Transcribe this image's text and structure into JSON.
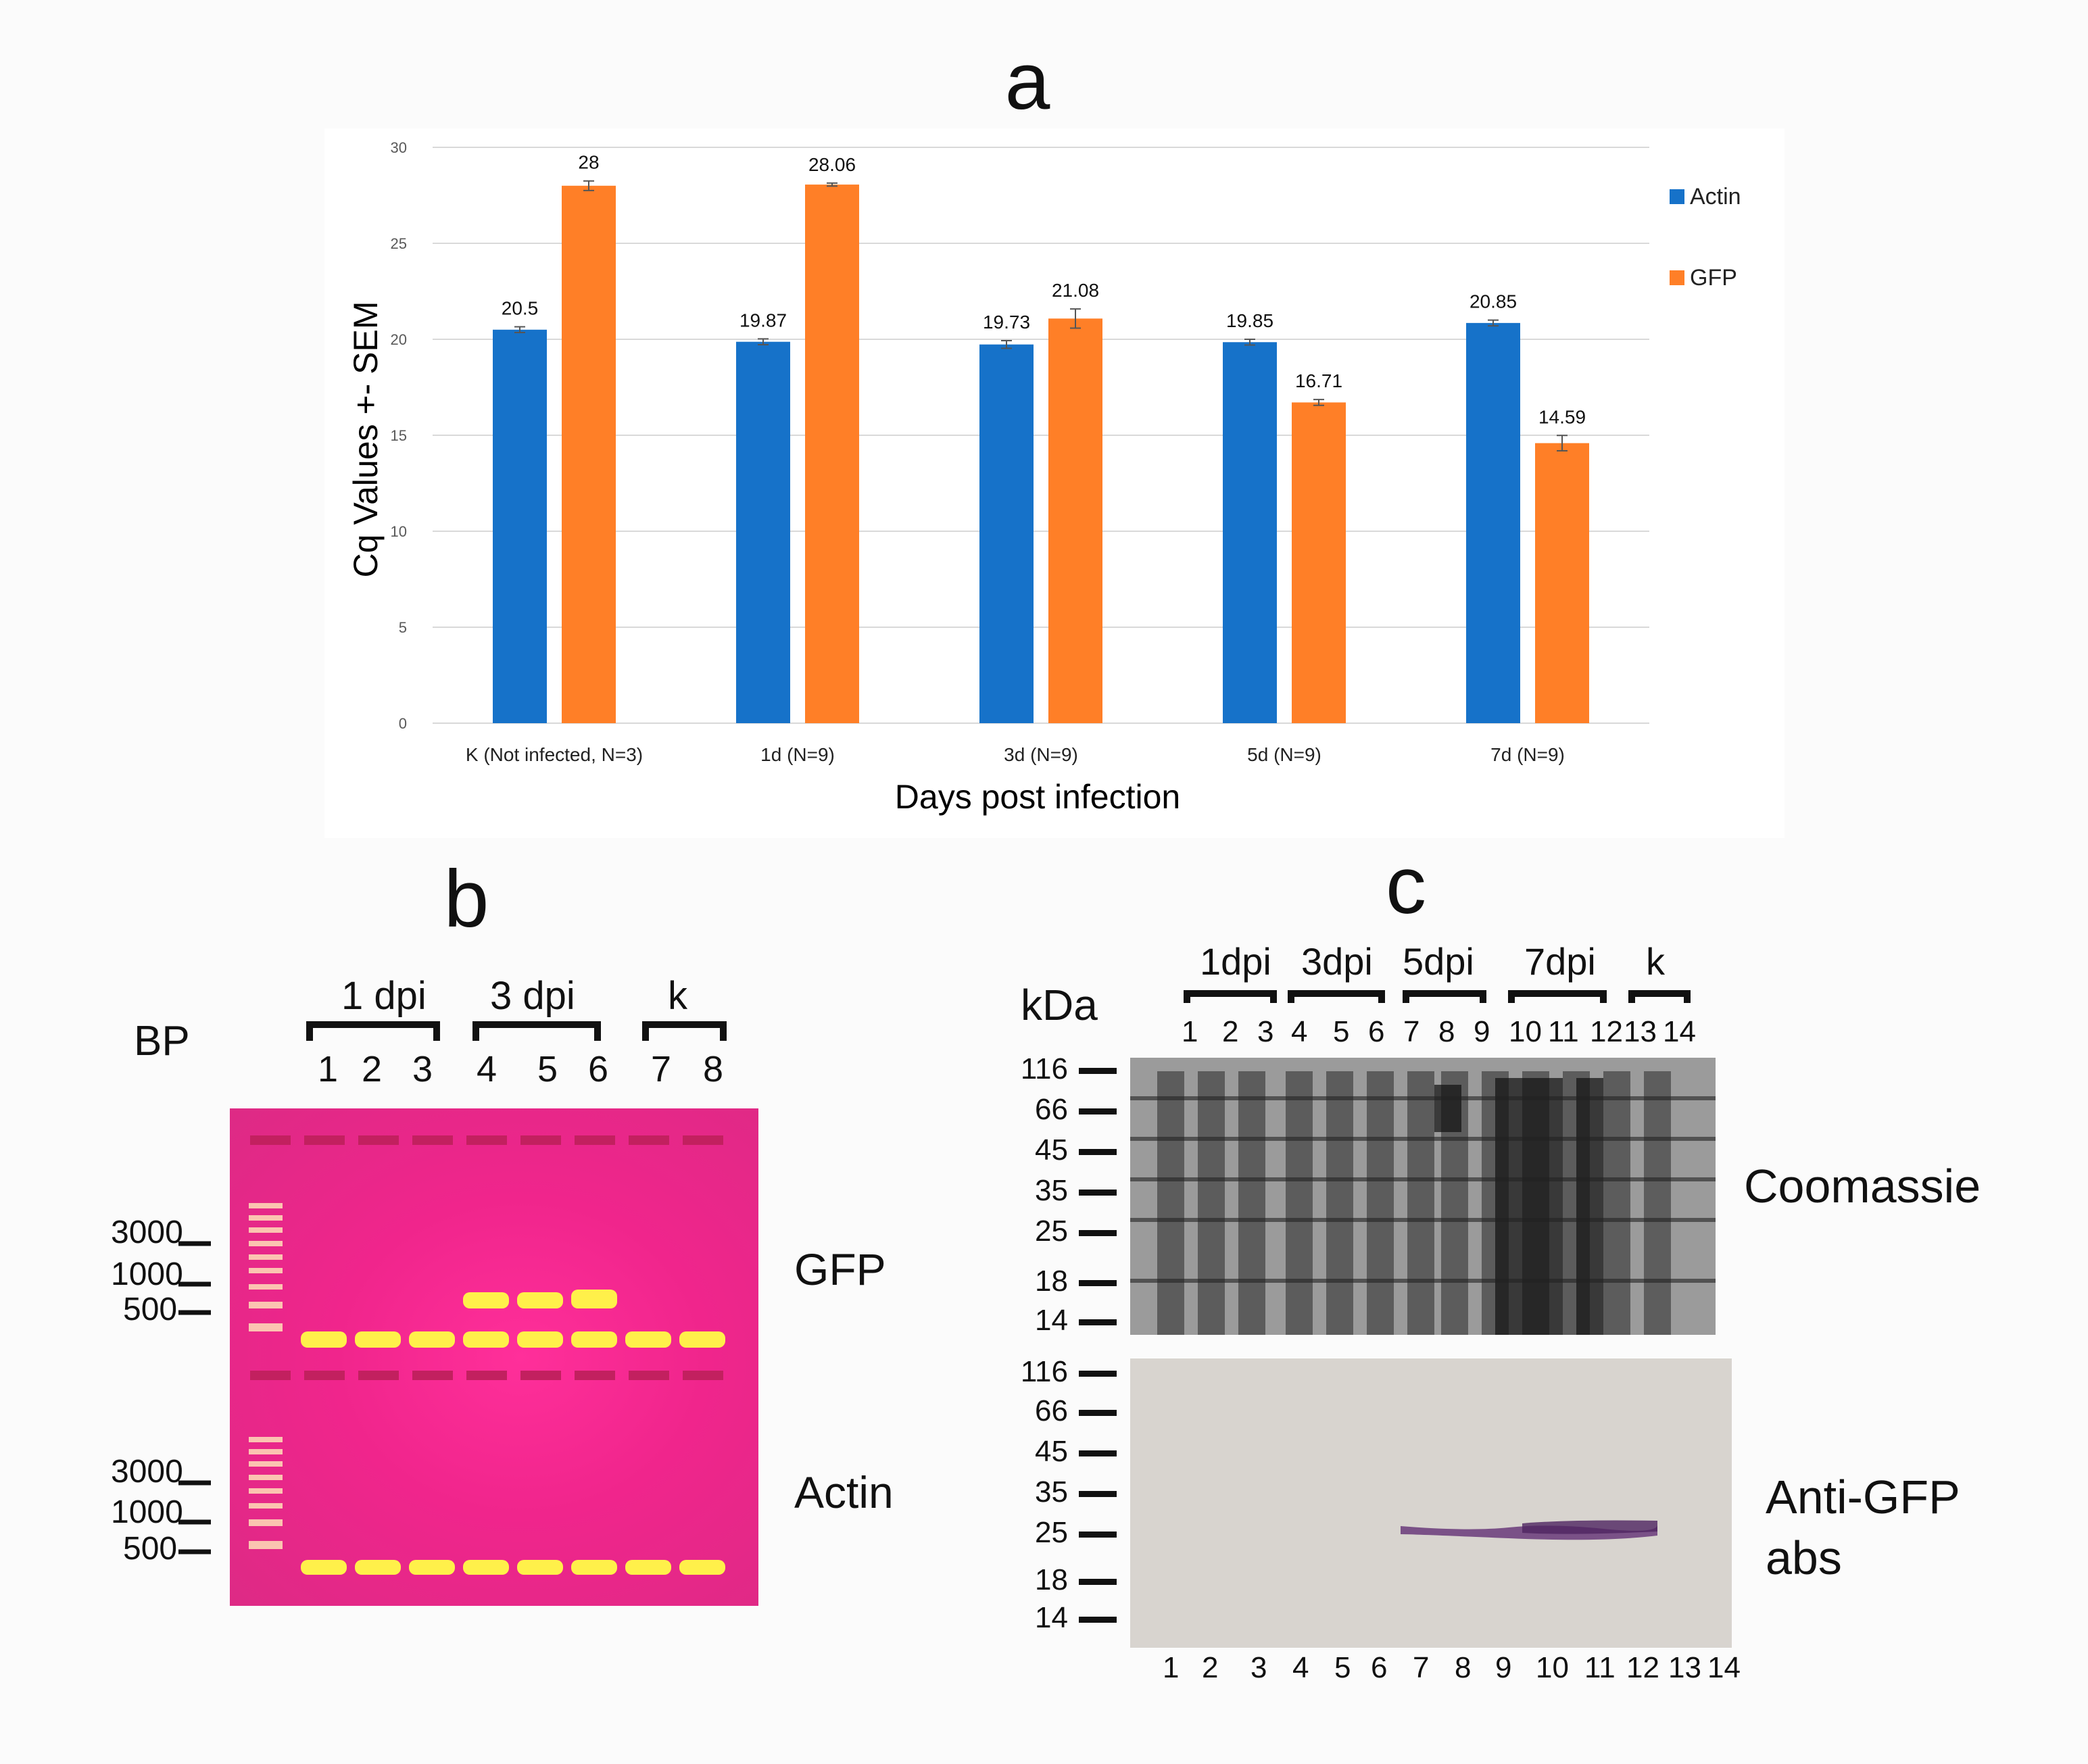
{
  "panel_a": {
    "letter": "a",
    "chart_data": {
      "type": "bar",
      "categories": [
        "K (Not infected, N=3)",
        "1d (N=9)",
        "3d (N=9)",
        "5d (N=9)",
        "7d (N=9)"
      ],
      "series": [
        {
          "name": "Actin",
          "color": "#1672c9",
          "values": [
            20.5,
            19.87,
            19.73,
            19.85,
            20.85
          ],
          "labels": [
            "20.5",
            "19.87",
            "19.73",
            "19.85",
            "20.85"
          ],
          "sem": [
            0.15,
            0.15,
            0.2,
            0.15,
            0.15
          ]
        },
        {
          "name": "GFP",
          "color": "#ff7f27",
          "values": [
            28,
            28.06,
            21.08,
            16.71,
            14.59
          ],
          "labels": [
            "28",
            "28.06",
            "21.08",
            "16.71",
            "14.59"
          ],
          "sem": [
            0.25,
            0.08,
            0.5,
            0.15,
            0.4
          ]
        }
      ],
      "xlabel": "Days post infection",
      "ylabel": "Cq Values +- SEM",
      "ylim": [
        0,
        30
      ],
      "yticks": [
        0,
        5,
        10,
        15,
        20,
        25,
        30
      ],
      "ytick_labels": [
        "0",
        "5",
        "10",
        "15",
        "20",
        "25",
        "30"
      ],
      "grid": true,
      "legend": "right"
    }
  },
  "panel_b": {
    "letter": "b",
    "bp_label": "BP",
    "groups": [
      "1 dpi",
      "3 dpi",
      "k"
    ],
    "lanes": [
      "1",
      "2",
      "3",
      "4",
      "5",
      "6",
      "7",
      "8"
    ],
    "markers_top": [
      "3000",
      "1000",
      "500"
    ],
    "markers_bottom": [
      "3000",
      "1000",
      "500"
    ],
    "row_labels": [
      "GFP",
      "Actin"
    ]
  },
  "panel_c": {
    "letter": "c",
    "kda_label": "kDa",
    "groups": [
      "1dpi",
      "3dpi",
      "5dpi",
      "7dpi",
      "k"
    ],
    "lanes_top": [
      "1",
      "2",
      "3",
      "4",
      "5",
      "6",
      "7",
      "8",
      "9",
      "10",
      "11",
      "12",
      "13",
      "14"
    ],
    "lanes_bottom": [
      "1",
      "2",
      "3",
      "4",
      "5",
      "6",
      "7",
      "8",
      "9",
      "10",
      "11",
      "12",
      "13",
      "14"
    ],
    "markers": [
      "116",
      "66",
      "45",
      "35",
      "25",
      "18",
      "14"
    ],
    "coomassie_label": "Coomassie",
    "antigfp_line1": "Anti-GFP",
    "antigfp_line2": "abs"
  }
}
